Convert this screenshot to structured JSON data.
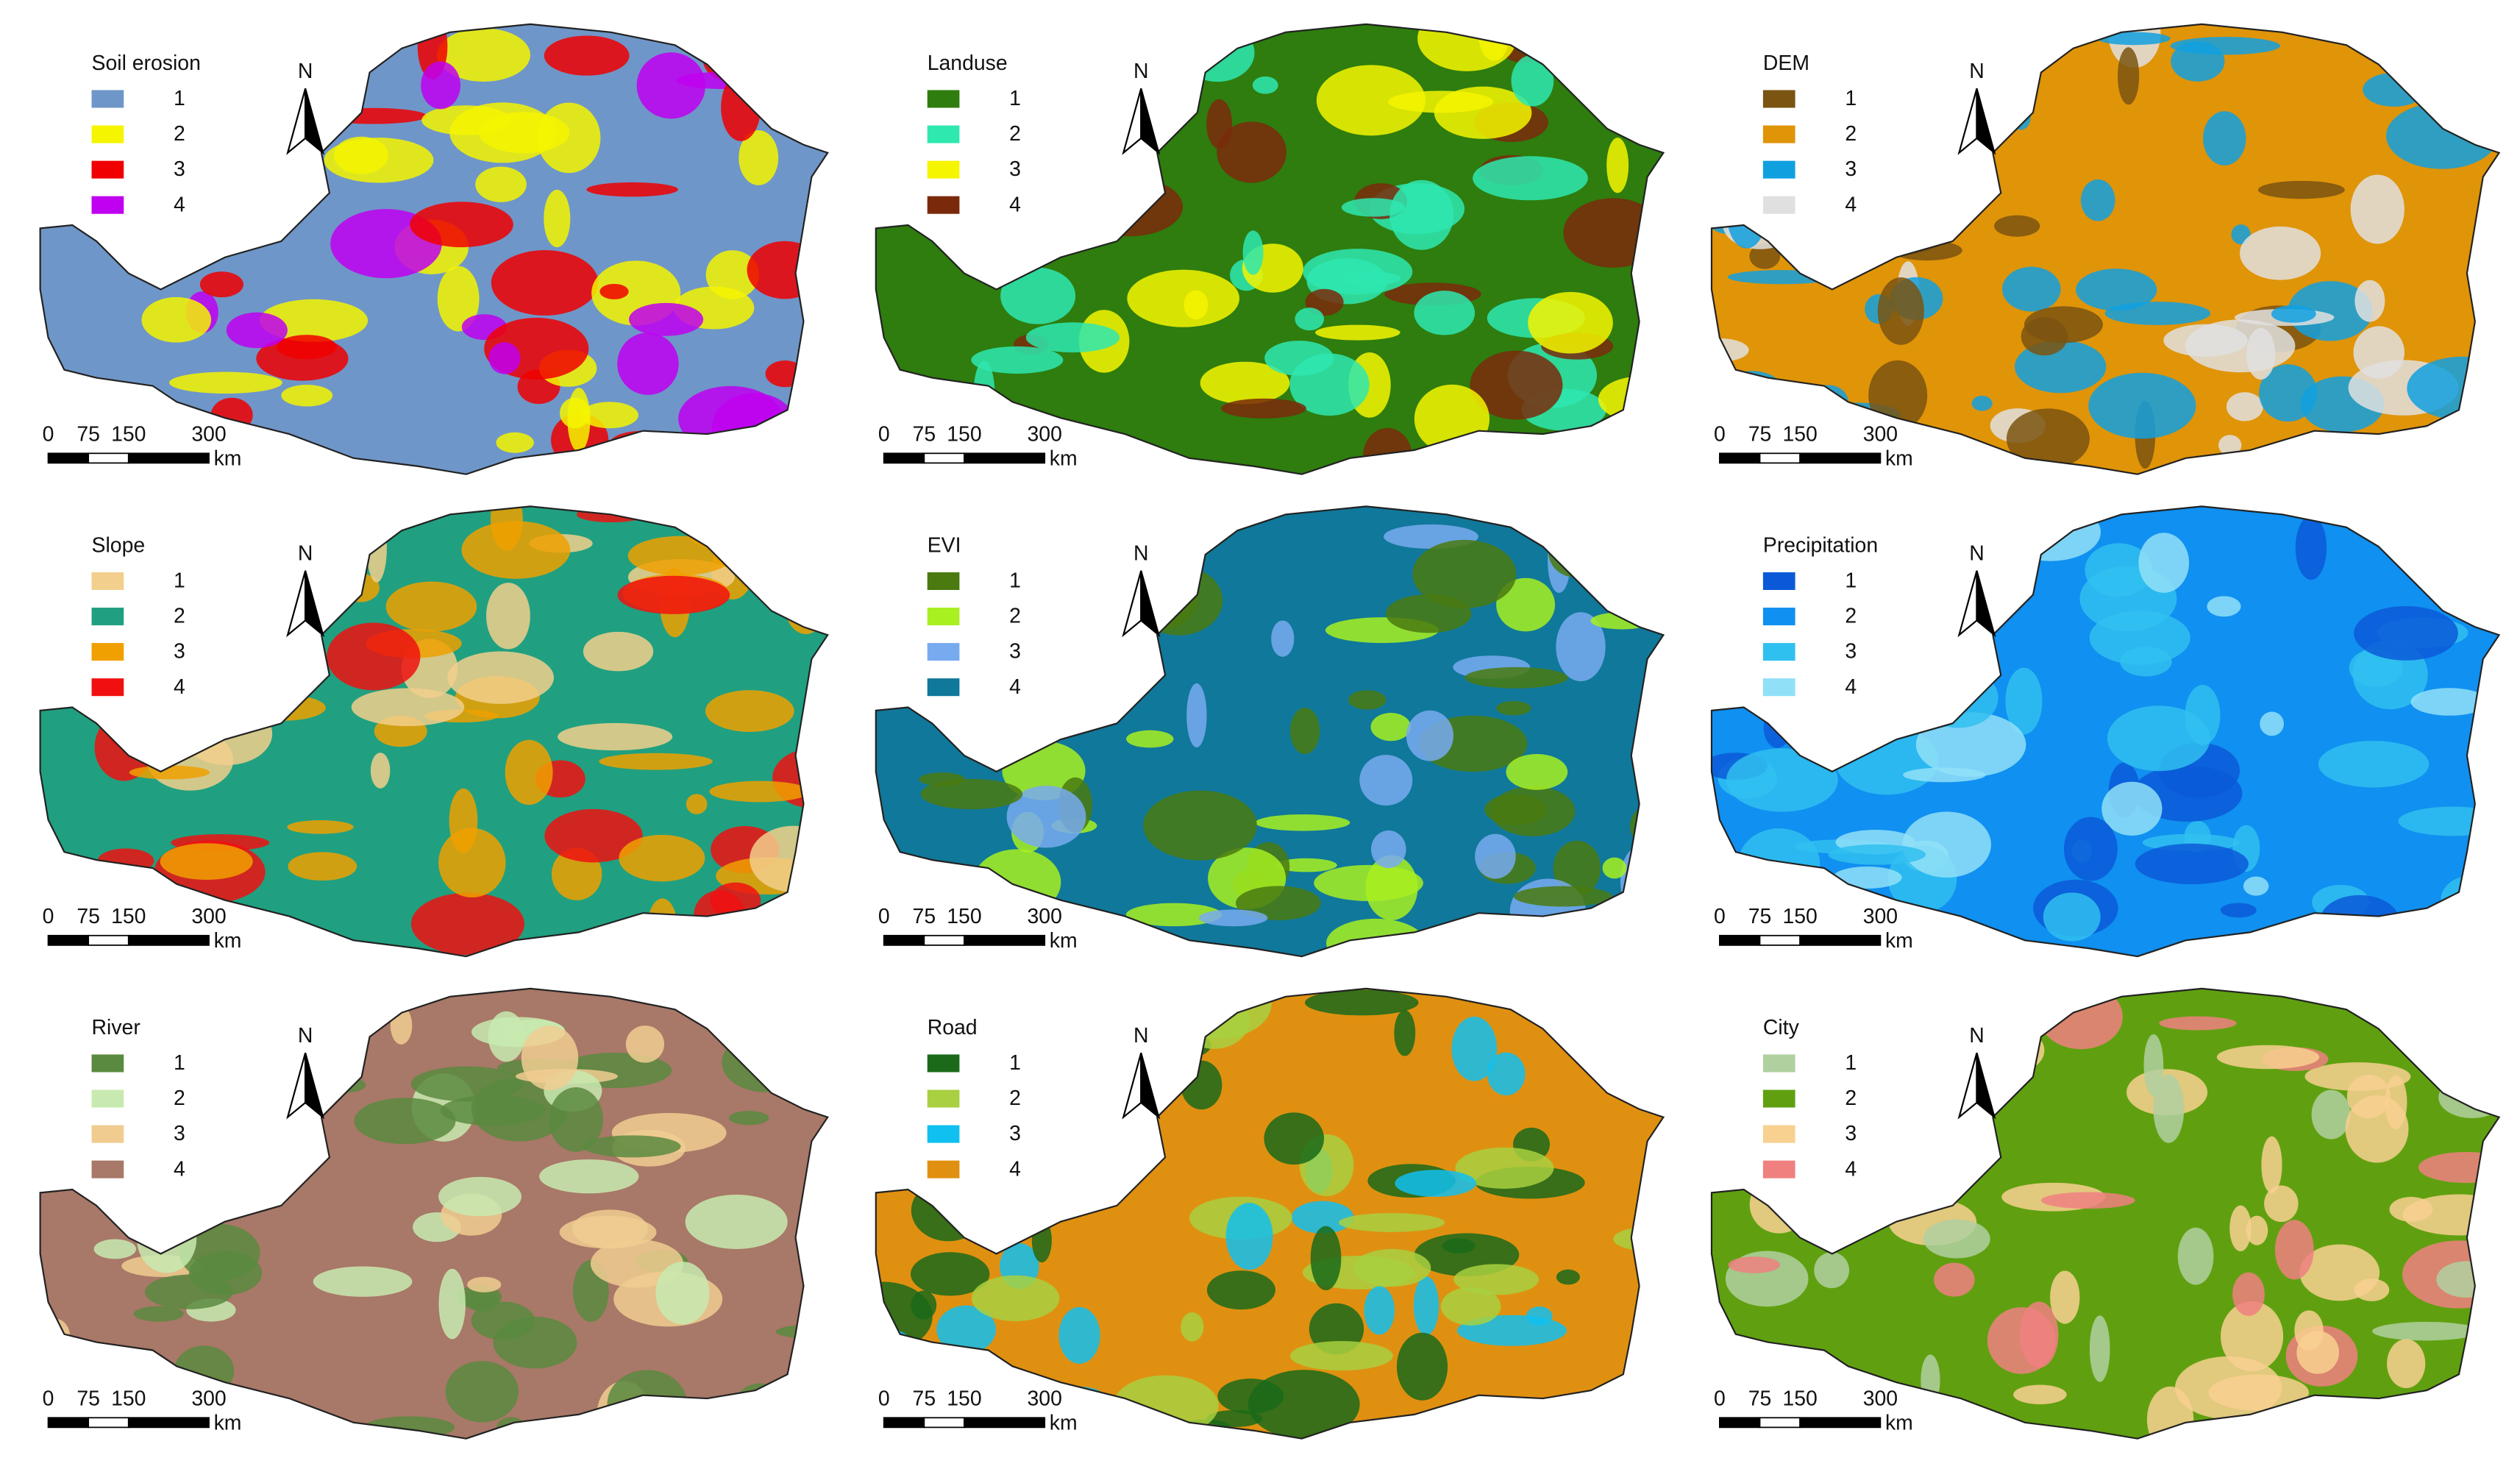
{
  "panels": [
    {
      "title": "Soil erosion",
      "legend": [
        {
          "label": "1",
          "color": "#6f96c8"
        },
        {
          "label": "2",
          "color": "#f5f500"
        },
        {
          "label": "3",
          "color": "#f00000"
        },
        {
          "label": "4",
          "color": "#c000f0"
        }
      ]
    },
    {
      "title": "Landuse",
      "legend": [
        {
          "label": "1",
          "color": "#2e7d0e"
        },
        {
          "label": "2",
          "color": "#2ee8b0"
        },
        {
          "label": "3",
          "color": "#f5f500"
        },
        {
          "label": "4",
          "color": "#7a2a0a"
        }
      ]
    },
    {
      "title": "DEM",
      "legend": [
        {
          "label": "1",
          "color": "#7a5410"
        },
        {
          "label": "2",
          "color": "#e09408"
        },
        {
          "label": "3",
          "color": "#10a0e0"
        },
        {
          "label": "4",
          "color": "#e0e0e0"
        }
      ]
    },
    {
      "title": "Slope",
      "legend": [
        {
          "label": "1",
          "color": "#f2cf8c"
        },
        {
          "label": "2",
          "color": "#20a080"
        },
        {
          "label": "3",
          "color": "#f0a000"
        },
        {
          "label": "4",
          "color": "#f01010"
        }
      ]
    },
    {
      "title": "EVI",
      "legend": [
        {
          "label": "1",
          "color": "#4a7a10"
        },
        {
          "label": "2",
          "color": "#a8f020"
        },
        {
          "label": "3",
          "color": "#78aaf0"
        },
        {
          "label": "4",
          "color": "#10789a"
        }
      ]
    },
    {
      "title": "Precipitation",
      "legend": [
        {
          "label": "1",
          "color": "#0a5ad8"
        },
        {
          "label": "2",
          "color": "#1090f0"
        },
        {
          "label": "3",
          "color": "#30c0f0"
        },
        {
          "label": "4",
          "color": "#90e0f8"
        }
      ]
    },
    {
      "title": "River",
      "legend": [
        {
          "label": "1",
          "color": "#5a8a40"
        },
        {
          "label": "2",
          "color": "#c8eab0"
        },
        {
          "label": "3",
          "color": "#f0cc90"
        },
        {
          "label": "4",
          "color": "#a87868"
        }
      ]
    },
    {
      "title": "Road",
      "legend": [
        {
          "label": "1",
          "color": "#1a6a1a"
        },
        {
          "label": "2",
          "color": "#a8d040"
        },
        {
          "label": "3",
          "color": "#10c0f0"
        },
        {
          "label": "4",
          "color": "#e09010"
        }
      ]
    },
    {
      "title": "City",
      "legend": [
        {
          "label": "1",
          "color": "#b0d0a0"
        },
        {
          "label": "2",
          "color": "#60a010"
        },
        {
          "label": "3",
          "color": "#f8d090"
        },
        {
          "label": "4",
          "color": "#f08080"
        }
      ]
    }
  ],
  "north": "N",
  "scale_bar": {
    "ticks": [
      0,
      75,
      150,
      300
    ],
    "unit": "km"
  }
}
